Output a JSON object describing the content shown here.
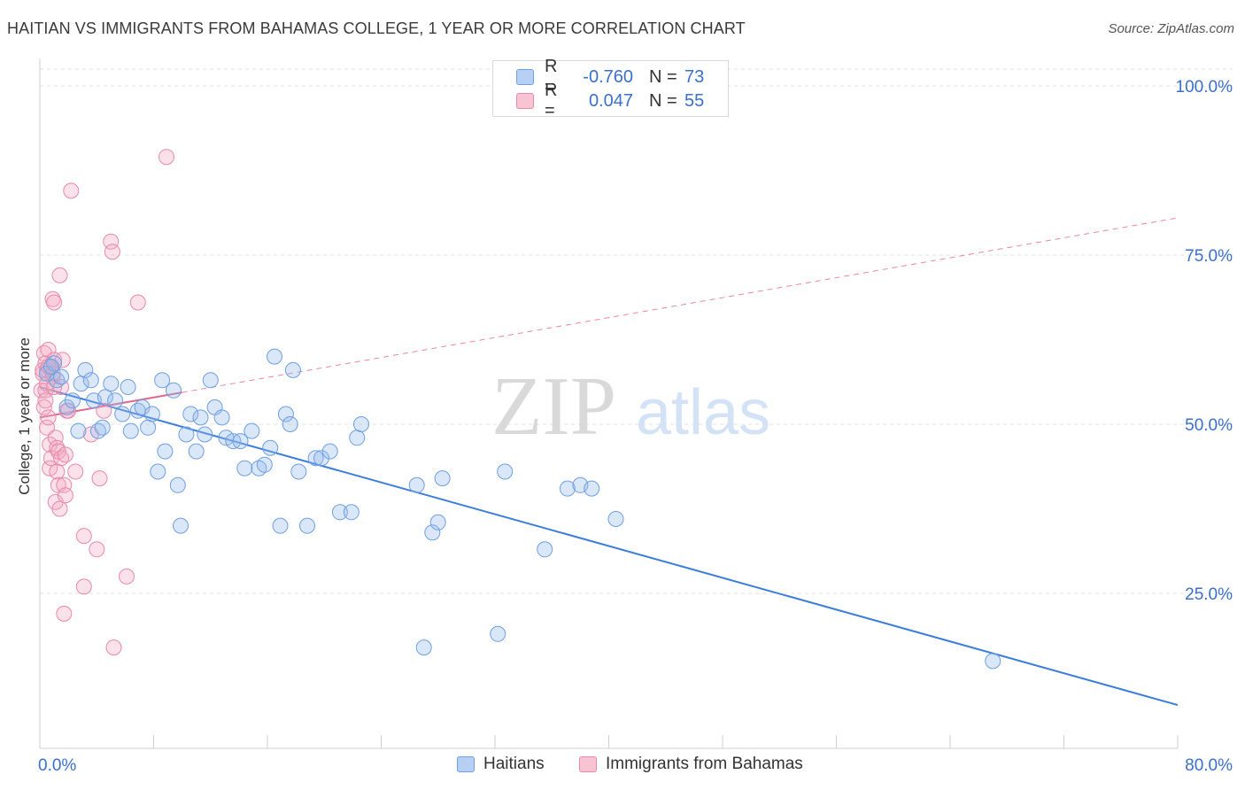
{
  "title": "HAITIAN VS IMMIGRANTS FROM BAHAMAS COLLEGE, 1 YEAR OR MORE CORRELATION CHART",
  "source": "Source: ZipAtlas.com",
  "watermark": {
    "zip": "ZIP",
    "atlas": "atlas"
  },
  "legend": {
    "rows": [
      {
        "r_label": "R =",
        "r_value": "-0.760",
        "n_label": "N =",
        "n_value": "73",
        "swatch_fill": "#b7cff2",
        "swatch_stroke": "#6f9fe0"
      },
      {
        "r_label": "R =",
        "r_value": "0.047",
        "n_label": "N =",
        "n_value": "55",
        "swatch_fill": "#f8c3d3",
        "swatch_stroke": "#e889a8"
      }
    ]
  },
  "bottom_legend": {
    "haitians": "Haitians",
    "bahamas": "Immigrants from Bahamas"
  },
  "chart_data": {
    "type": "scatter",
    "title": "HAITIAN VS IMMIGRANTS FROM BAHAMAS COLLEGE, 1 YEAR OR MORE CORRELATION CHART",
    "xlabel": "",
    "ylabel": "College, 1 year or more",
    "xlim": [
      0,
      80
    ],
    "ylim": [
      0,
      105
    ],
    "x_tick_labels": [
      "0.0%",
      "80.0%"
    ],
    "y_ticks": [
      25,
      50,
      75,
      100
    ],
    "y_tick_labels": [
      "25.0%",
      "50.0%",
      "75.0%",
      "100.0%"
    ],
    "colors": {
      "haitians": "#3b7dd8",
      "bahamas": "#e0698f",
      "axis_text": "#3b6fc8"
    },
    "series": [
      {
        "name": "Haitians",
        "color": "#3b7dd8",
        "trend": {
          "x0": 0,
          "y0": 55.5,
          "x1": 80,
          "y1": 8.5,
          "dashed_to": null
        },
        "points": [
          [
            0.5,
            57.5
          ],
          [
            1.0,
            59.0
          ],
          [
            1.2,
            56.5
          ],
          [
            1.5,
            57.0
          ],
          [
            1.9,
            52.5
          ],
          [
            2.3,
            53.5
          ],
          [
            2.7,
            49.0
          ],
          [
            2.9,
            56.0
          ],
          [
            3.2,
            58.0
          ],
          [
            3.6,
            56.5
          ],
          [
            3.8,
            53.5
          ],
          [
            4.1,
            49.0
          ],
          [
            4.4,
            49.5
          ],
          [
            4.6,
            54.0
          ],
          [
            5.0,
            56.0
          ],
          [
            5.3,
            53.5
          ],
          [
            5.8,
            51.5
          ],
          [
            6.2,
            55.5
          ],
          [
            6.4,
            49.0
          ],
          [
            6.9,
            52.0
          ],
          [
            7.2,
            52.5
          ],
          [
            7.6,
            49.5
          ],
          [
            7.9,
            51.5
          ],
          [
            8.3,
            43.0
          ],
          [
            8.6,
            56.5
          ],
          [
            8.8,
            46.0
          ],
          [
            9.4,
            55.0
          ],
          [
            9.7,
            41.0
          ],
          [
            9.9,
            35.0
          ],
          [
            10.3,
            48.5
          ],
          [
            10.6,
            51.5
          ],
          [
            11.0,
            46.0
          ],
          [
            11.3,
            51.0
          ],
          [
            11.6,
            48.5
          ],
          [
            12.0,
            56.5
          ],
          [
            12.3,
            52.5
          ],
          [
            12.8,
            51.0
          ],
          [
            13.1,
            48.0
          ],
          [
            13.6,
            47.5
          ],
          [
            14.1,
            47.5
          ],
          [
            14.4,
            43.5
          ],
          [
            14.9,
            49.0
          ],
          [
            15.4,
            43.5
          ],
          [
            15.8,
            44.0
          ],
          [
            16.2,
            46.5
          ],
          [
            16.5,
            60.0
          ],
          [
            16.9,
            35.0
          ],
          [
            17.3,
            51.5
          ],
          [
            17.6,
            50.0
          ],
          [
            17.8,
            58.0
          ],
          [
            18.2,
            43.0
          ],
          [
            18.8,
            35.0
          ],
          [
            19.4,
            45.0
          ],
          [
            19.8,
            45.0
          ],
          [
            20.4,
            46.0
          ],
          [
            21.1,
            37.0
          ],
          [
            21.9,
            37.0
          ],
          [
            22.3,
            48.0
          ],
          [
            22.6,
            50.0
          ],
          [
            26.5,
            41.0
          ],
          [
            27.0,
            17.0
          ],
          [
            27.6,
            34.0
          ],
          [
            28.0,
            35.5
          ],
          [
            28.3,
            42.0
          ],
          [
            32.2,
            19.0
          ],
          [
            32.7,
            43.0
          ],
          [
            35.5,
            31.5
          ],
          [
            37.1,
            40.5
          ],
          [
            38.0,
            41.0
          ],
          [
            38.8,
            40.5
          ],
          [
            40.5,
            36.0
          ],
          [
            67.0,
            15.0
          ],
          [
            0.8,
            58.5
          ]
        ]
      },
      {
        "name": "Immigrants from Bahamas",
        "color": "#e0698f",
        "trend": {
          "x0": 0,
          "y0": 51.0,
          "x1": 10.0,
          "y1": 54.7,
          "dashed_to": {
            "x": 80,
            "y": 80.5
          }
        },
        "points": [
          [
            0.1,
            55.0
          ],
          [
            0.2,
            57.5
          ],
          [
            0.3,
            60.5
          ],
          [
            0.3,
            52.5
          ],
          [
            0.4,
            59.0
          ],
          [
            0.4,
            55.0
          ],
          [
            0.5,
            58.0
          ],
          [
            0.5,
            49.5
          ],
          [
            0.6,
            61.0
          ],
          [
            0.6,
            51.0
          ],
          [
            0.7,
            47.0
          ],
          [
            0.7,
            43.5
          ],
          [
            0.8,
            58.5
          ],
          [
            0.8,
            45.0
          ],
          [
            0.9,
            57.0
          ],
          [
            0.9,
            68.5
          ],
          [
            1.0,
            68.0
          ],
          [
            1.0,
            59.5
          ],
          [
            1.1,
            48.0
          ],
          [
            1.1,
            38.5
          ],
          [
            1.2,
            43.0
          ],
          [
            1.2,
            46.5
          ],
          [
            1.3,
            46.0
          ],
          [
            1.3,
            41.0
          ],
          [
            1.4,
            37.5
          ],
          [
            1.4,
            72.0
          ],
          [
            1.5,
            55.5
          ],
          [
            1.5,
            45.0
          ],
          [
            1.6,
            59.5
          ],
          [
            1.7,
            41.0
          ],
          [
            1.7,
            22.0
          ],
          [
            1.8,
            45.5
          ],
          [
            1.8,
            39.5
          ],
          [
            1.9,
            52.0
          ],
          [
            2.0,
            52.0
          ],
          [
            2.2,
            84.5
          ],
          [
            2.5,
            43.0
          ],
          [
            3.1,
            33.5
          ],
          [
            3.1,
            26.0
          ],
          [
            3.6,
            48.5
          ],
          [
            4.0,
            31.5
          ],
          [
            4.2,
            42.0
          ],
          [
            4.5,
            52.0
          ],
          [
            5.0,
            77.0
          ],
          [
            5.1,
            75.5
          ],
          [
            5.2,
            17.0
          ],
          [
            6.1,
            27.5
          ],
          [
            6.9,
            68.0
          ],
          [
            8.9,
            89.5
          ],
          [
            0.2,
            58.0
          ],
          [
            0.5,
            56.0
          ],
          [
            0.9,
            57.5
          ],
          [
            0.4,
            53.5
          ],
          [
            1.0,
            55.5
          ],
          [
            0.6,
            58.5
          ]
        ]
      }
    ]
  }
}
